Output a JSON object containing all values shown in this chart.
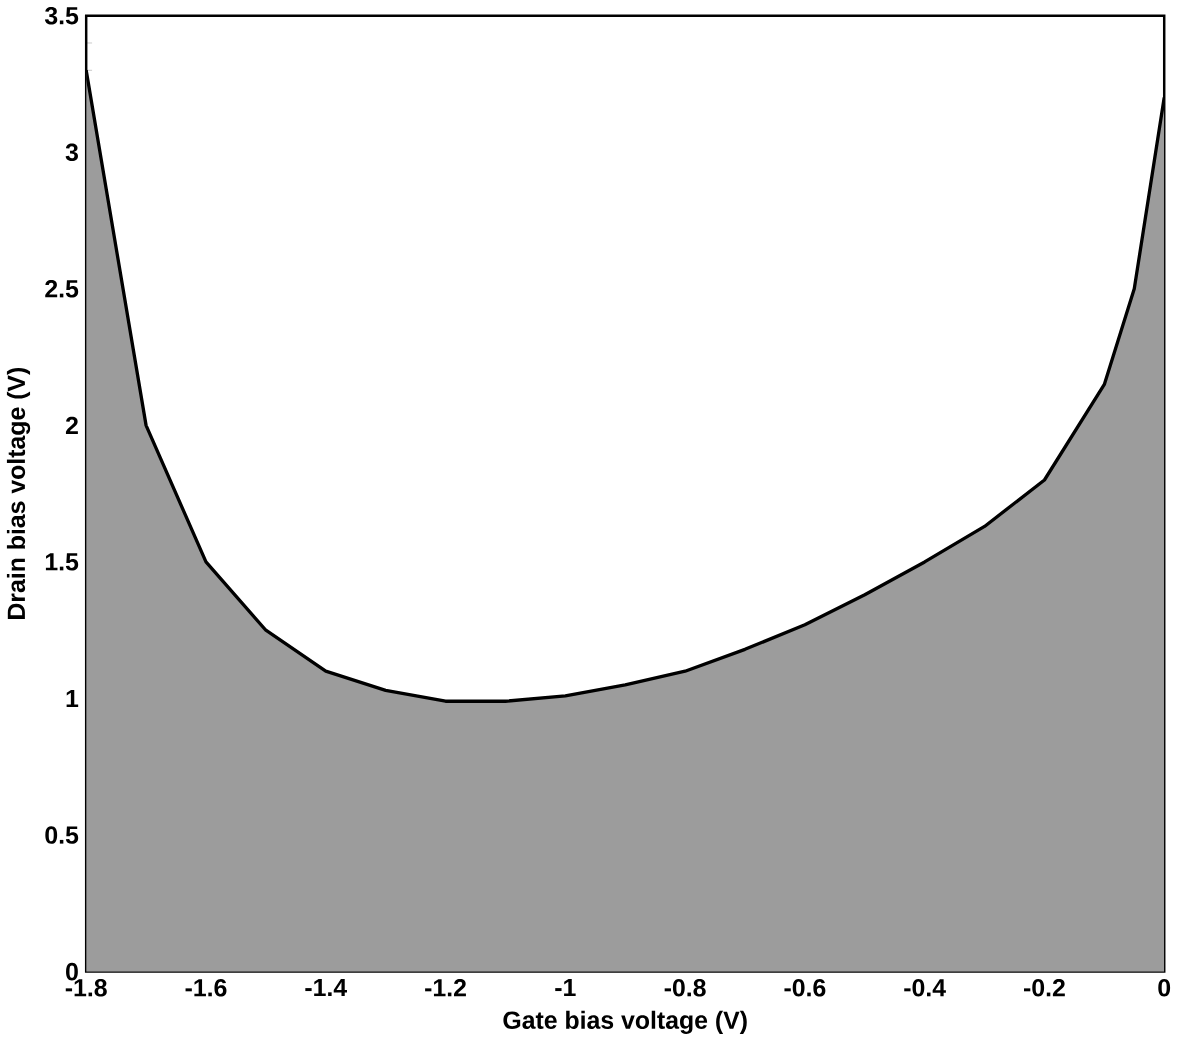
{
  "chart_data": {
    "type": "area",
    "xlabel": "Gate bias voltage (V)",
    "ylabel": "Drain bias voltage (V)",
    "x": [
      -1.8,
      -1.7,
      -1.6,
      -1.5,
      -1.4,
      -1.3,
      -1.2,
      -1.1,
      -1.0,
      -0.9,
      -0.8,
      -0.7,
      -0.6,
      -0.5,
      -0.4,
      -0.3,
      -0.2,
      -0.1,
      -0.05,
      0
    ],
    "series": [
      {
        "color": "#9c9c9c",
        "values": [
          3.3,
          2.0,
          1.5,
          1.25,
          1.1,
          1.03,
          0.99,
          0.99,
          1.01,
          1.05,
          1.1,
          1.18,
          1.27,
          1.38,
          1.5,
          1.63,
          1.8,
          2.15,
          2.5,
          3.2
        ]
      }
    ],
    "xlim": [
      -1.8,
      0
    ],
    "ylim": [
      0,
      3.5
    ],
    "xticks": [
      -1.8,
      -1.6,
      -1.4,
      -1.2,
      -1,
      -0.8,
      -0.6,
      -0.4,
      -0.2,
      0
    ],
    "yticks": [
      0,
      0.5,
      1,
      1.5,
      2,
      2.5,
      3,
      3.5
    ]
  }
}
